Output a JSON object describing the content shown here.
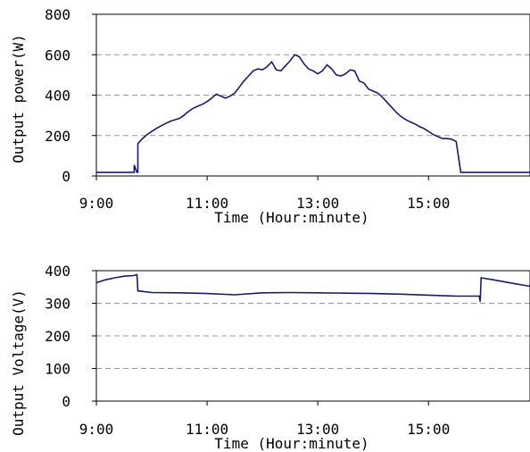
{
  "chart_data": [
    {
      "type": "line",
      "xlabel": "Time (Hour:minute)",
      "ylabel": "Output power(W)",
      "x_tick_labels": [
        "9:00",
        "11:00",
        "13:00",
        "15:00"
      ],
      "x_ticks": [
        "9:00",
        "11:00",
        "13:00",
        "15:00"
      ],
      "xlim": [
        "9:00",
        "16:50"
      ],
      "y_ticks": [
        0,
        200,
        400,
        600,
        800
      ],
      "ylim": [
        0,
        800
      ],
      "grid": "horizontal-dashed",
      "line_color": "#1a1a6e",
      "series": [
        {
          "x": [
            "9:00",
            "9:20",
            "9:41",
            "9:41",
            "9:44",
            "9:44",
            "9:45",
            "9:45",
            "9:50",
            "9:55",
            "10:00",
            "10:05",
            "10:10",
            "10:15",
            "10:20",
            "10:25",
            "10:30",
            "10:35",
            "10:40",
            "10:45",
            "10:50",
            "10:55",
            "11:00",
            "11:05",
            "11:10",
            "11:15",
            "11:20",
            "11:25",
            "11:30",
            "11:35",
            "11:40",
            "11:45",
            "11:50",
            "11:55",
            "12:00",
            "12:05",
            "12:10",
            "12:15",
            "12:20",
            "12:25",
            "12:30",
            "12:35",
            "12:40",
            "12:45",
            "12:50",
            "12:55",
            "13:00",
            "13:05",
            "13:10",
            "13:15",
            "13:20",
            "13:25",
            "13:30",
            "13:35",
            "13:40",
            "13:45",
            "13:50",
            "13:55",
            "14:00",
            "14:05",
            "14:10",
            "14:15",
            "14:20",
            "14:25",
            "14:30",
            "14:35",
            "14:40",
            "14:45",
            "14:50",
            "14:55",
            "15:00",
            "15:05",
            "15:10",
            "15:15",
            "15:20",
            "15:25",
            "15:30",
            "15:35",
            "15:40",
            "15:45",
            "15:50",
            "15:55",
            "15:57",
            "15:57",
            "16:20",
            "16:50"
          ],
          "y": [
            18,
            18,
            18,
            55,
            18,
            18,
            18,
            160,
            185,
            205,
            220,
            235,
            248,
            260,
            270,
            278,
            285,
            300,
            320,
            335,
            345,
            355,
            368,
            385,
            405,
            395,
            385,
            395,
            410,
            440,
            470,
            495,
            520,
            530,
            525,
            540,
            565,
            525,
            520,
            545,
            570,
            600,
            590,
            555,
            530,
            520,
            505,
            520,
            550,
            530,
            500,
            495,
            505,
            525,
            520,
            470,
            460,
            430,
            420,
            410,
            390,
            365,
            340,
            315,
            295,
            280,
            268,
            258,
            245,
            235,
            220,
            205,
            195,
            185,
            185,
            182,
            170,
            18,
            18,
            18,
            18,
            18,
            18,
            18,
            18,
            18
          ]
        }
      ]
    },
    {
      "type": "line",
      "xlabel": "Time (Hour:minute)",
      "ylabel": "Output Voltage(V)",
      "x_tick_labels": [
        "9:00",
        "11:00",
        "13:00",
        "15:00"
      ],
      "x_ticks": [
        "9:00",
        "11:00",
        "13:00",
        "15:00"
      ],
      "xlim": [
        "9:00",
        "16:50"
      ],
      "y_ticks": [
        0,
        100,
        200,
        300,
        400
      ],
      "ylim": [
        0,
        400
      ],
      "grid": "horizontal-dashed",
      "line_color": "#1a1a6e",
      "series": [
        {
          "x": [
            "9:00",
            "9:10",
            "9:20",
            "9:30",
            "9:40",
            "9:44",
            "9:45",
            "10:00",
            "10:30",
            "11:00",
            "11:30",
            "12:00",
            "12:30",
            "13:00",
            "13:30",
            "14:00",
            "14:30",
            "15:00",
            "15:30",
            "15:55",
            "15:56",
            "15:57",
            "16:10",
            "16:30",
            "16:50"
          ],
          "y": [
            363,
            372,
            378,
            383,
            385,
            388,
            338,
            333,
            332,
            330,
            326,
            332,
            333,
            332,
            331,
            330,
            328,
            325,
            322,
            322,
            305,
            378,
            372,
            362,
            352
          ]
        }
      ]
    }
  ]
}
